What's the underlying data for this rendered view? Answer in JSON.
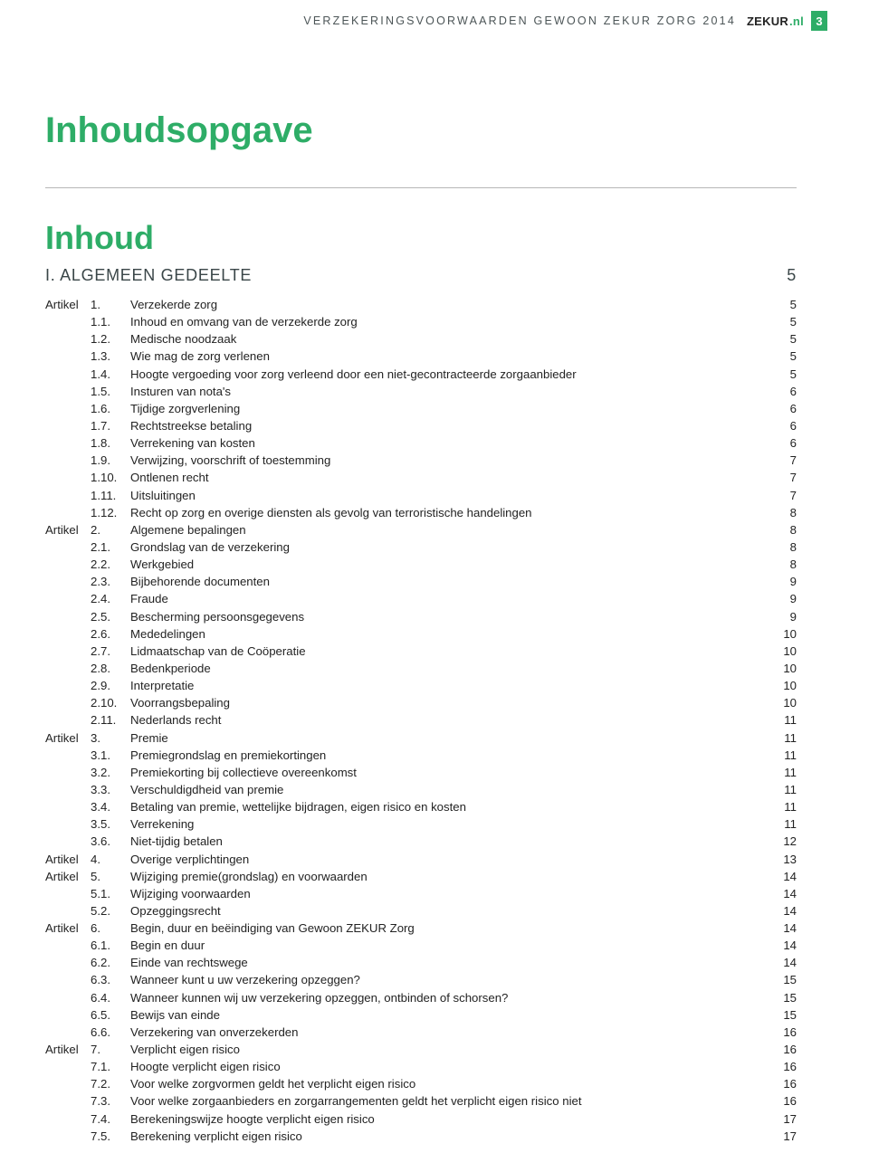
{
  "header": {
    "running_title": "VERZEKERINGSVOORWAARDEN GEWOON ZEKUR ZORG 2014",
    "logo_main": "ZEKUR",
    "logo_suffix": ".nl",
    "page_number": "3"
  },
  "titles": {
    "toc_heading": "Inhoudsopgave",
    "inhoud": "Inhoud"
  },
  "section": {
    "label": "I.  ALGEMEEN GEDEELTE",
    "page": "5"
  },
  "colors": {
    "accent": "#2ead67",
    "text": "#232323",
    "header_text": "#4c5557"
  },
  "toc": [
    {
      "prefix": "Artikel",
      "num": "1.",
      "title": "Verzekerde zorg",
      "page": "5"
    },
    {
      "prefix": "",
      "num": "1.1.",
      "title": "Inhoud en omvang van de verzekerde zorg",
      "page": "5"
    },
    {
      "prefix": "",
      "num": "1.2.",
      "title": "Medische noodzaak",
      "page": "5"
    },
    {
      "prefix": "",
      "num": "1.3.",
      "title": "Wie mag de zorg verlenen",
      "page": "5"
    },
    {
      "prefix": "",
      "num": "1.4.",
      "title": "Hoogte vergoeding voor zorg verleend door een niet-gecontracteerde zorgaanbieder",
      "page": "5"
    },
    {
      "prefix": "",
      "num": "1.5.",
      "title": "Insturen van nota's",
      "page": "6"
    },
    {
      "prefix": "",
      "num": "1.6.",
      "title": "Tijdige zorgverlening",
      "page": "6"
    },
    {
      "prefix": "",
      "num": "1.7.",
      "title": "Rechtstreekse betaling",
      "page": "6"
    },
    {
      "prefix": "",
      "num": "1.8.",
      "title": "Verrekening van kosten",
      "page": "6"
    },
    {
      "prefix": "",
      "num": "1.9.",
      "title": "Verwijzing, voorschrift of toestemming",
      "page": "7"
    },
    {
      "prefix": "",
      "num": "1.10.",
      "title": "Ontlenen recht",
      "page": "7"
    },
    {
      "prefix": "",
      "num": "1.11.",
      "title": "Uitsluitingen",
      "page": "7"
    },
    {
      "prefix": "",
      "num": "1.12.",
      "title": "Recht op zorg en overige diensten als gevolg van terroristische handelingen",
      "page": "8"
    },
    {
      "prefix": "Artikel",
      "num": "2.",
      "title": "Algemene bepalingen",
      "page": "8"
    },
    {
      "prefix": "",
      "num": "2.1.",
      "title": "Grondslag van de verzekering",
      "page": "8"
    },
    {
      "prefix": "",
      "num": "2.2.",
      "title": "Werkgebied",
      "page": "8"
    },
    {
      "prefix": "",
      "num": "2.3.",
      "title": "Bijbehorende documenten",
      "page": "9"
    },
    {
      "prefix": "",
      "num": "2.4.",
      "title": "Fraude",
      "page": "9"
    },
    {
      "prefix": "",
      "num": "2.5.",
      "title": "Bescherming persoonsgegevens",
      "page": "9"
    },
    {
      "prefix": "",
      "num": "2.6.",
      "title": "Mededelingen",
      "page": "10"
    },
    {
      "prefix": "",
      "num": "2.7.",
      "title": "Lidmaatschap van de Coöperatie",
      "page": "10"
    },
    {
      "prefix": "",
      "num": "2.8.",
      "title": "Bedenkperiode",
      "page": "10"
    },
    {
      "prefix": "",
      "num": "2.9.",
      "title": "Interpretatie",
      "page": "10"
    },
    {
      "prefix": "",
      "num": "2.10.",
      "title": "Voorrangsbepaling",
      "page": "10"
    },
    {
      "prefix": "",
      "num": "2.11.",
      "title": "Nederlands recht",
      "page": "11"
    },
    {
      "prefix": "Artikel",
      "num": "3.",
      "title": "Premie",
      "page": "11"
    },
    {
      "prefix": "",
      "num": "3.1.",
      "title": "Premiegrondslag en premiekortingen",
      "page": "11"
    },
    {
      "prefix": "",
      "num": "3.2.",
      "title": "Premiekorting bij collectieve overeenkomst",
      "page": "11"
    },
    {
      "prefix": "",
      "num": "3.3.",
      "title": "Verschuldigdheid van premie",
      "page": "11"
    },
    {
      "prefix": "",
      "num": "3.4.",
      "title": "Betaling van premie, wettelijke bijdragen, eigen risico en kosten",
      "page": "11"
    },
    {
      "prefix": "",
      "num": "3.5.",
      "title": "Verrekening",
      "page": "11"
    },
    {
      "prefix": "",
      "num": "3.6.",
      "title": "Niet-tijdig betalen",
      "page": "12"
    },
    {
      "prefix": "Artikel",
      "num": "4.",
      "title": "Overige verplichtingen",
      "page": "13"
    },
    {
      "prefix": "Artikel",
      "num": "5.",
      "title": "Wijziging premie(grondslag) en voorwaarden",
      "page": "14"
    },
    {
      "prefix": "",
      "num": "5.1.",
      "title": "Wijziging voorwaarden",
      "page": "14"
    },
    {
      "prefix": "",
      "num": "5.2.",
      "title": "Opzeggingsrecht",
      "page": "14"
    },
    {
      "prefix": "Artikel",
      "num": "6.",
      "title": "Begin, duur en beëindiging van Gewoon ZEKUR Zorg",
      "page": "14"
    },
    {
      "prefix": "",
      "num": "6.1.",
      "title": "Begin en duur",
      "page": "14"
    },
    {
      "prefix": "",
      "num": "6.2.",
      "title": "Einde van rechtswege",
      "page": "14"
    },
    {
      "prefix": "",
      "num": "6.3.",
      "title": "Wanneer kunt u uw verzekering opzeggen?",
      "page": "15"
    },
    {
      "prefix": "",
      "num": "6.4.",
      "title": "Wanneer kunnen wij uw verzekering opzeggen, ontbinden of schorsen?",
      "page": "15"
    },
    {
      "prefix": "",
      "num": "6.5.",
      "title": "Bewijs van einde",
      "page": "15"
    },
    {
      "prefix": "",
      "num": "6.6.",
      "title": "Verzekering van onverzekerden",
      "page": "16"
    },
    {
      "prefix": "Artikel",
      "num": "7.",
      "title": "Verplicht eigen risico",
      "page": "16"
    },
    {
      "prefix": "",
      "num": "7.1.",
      "title": "Hoogte verplicht eigen risico",
      "page": "16"
    },
    {
      "prefix": "",
      "num": "7.2.",
      "title": "Voor welke zorgvormen geldt het verplicht eigen risico",
      "page": "16"
    },
    {
      "prefix": "",
      "num": "7.3.",
      "title": "Voor welke zorgaanbieders en zorgarrangementen geldt het verplicht eigen risico niet",
      "page": "16"
    },
    {
      "prefix": "",
      "num": "7.4.",
      "title": "Berekeningswijze hoogte verplicht eigen risico",
      "page": "17"
    },
    {
      "prefix": "",
      "num": "7.5.",
      "title": "Berekening verplicht eigen risico",
      "page": "17"
    }
  ]
}
